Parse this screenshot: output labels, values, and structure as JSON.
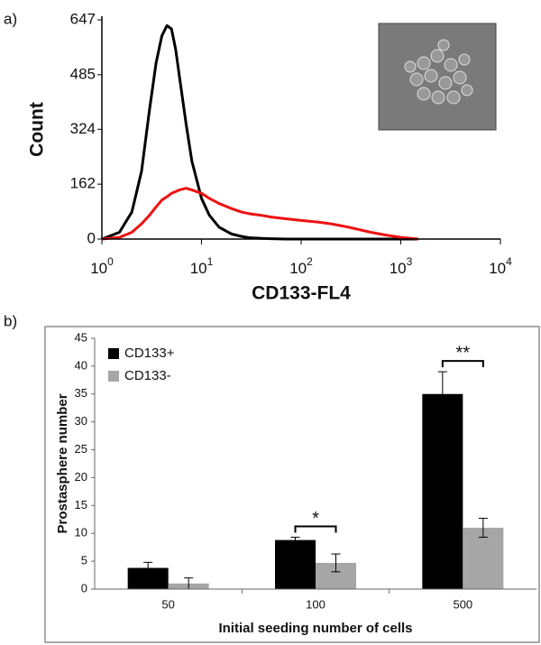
{
  "chart_data": [
    {
      "type": "line",
      "panel": "a)",
      "x_label": "CD133-FL4",
      "y_label": "Count",
      "log_x": true,
      "x": [
        1,
        1.5,
        2,
        2.5,
        3,
        3.5,
        4,
        4.5,
        5,
        5.5,
        6,
        7,
        8,
        10,
        12,
        15,
        20,
        25,
        30,
        40,
        50,
        70,
        100,
        150,
        200,
        300,
        500,
        700,
        1000,
        1500
      ],
      "series": [
        {
          "color": "#000000",
          "values": [
            0,
            20,
            80,
            200,
            380,
            520,
            600,
            630,
            620,
            560,
            480,
            340,
            230,
            120,
            70,
            35,
            15,
            8,
            4,
            2,
            1,
            0,
            0,
            0,
            0,
            0,
            0,
            0,
            0,
            0
          ]
        },
        {
          "color": "#ee1111",
          "values": [
            0,
            5,
            20,
            45,
            70,
            95,
            115,
            125,
            135,
            140,
            145,
            150,
            145,
            135,
            120,
            105,
            90,
            80,
            75,
            70,
            65,
            60,
            55,
            50,
            45,
            35,
            20,
            12,
            5,
            0
          ]
        }
      ],
      "xlim": [
        1,
        10000
      ],
      "xticks": [
        {
          "value": 1,
          "label": "10",
          "sup": "0"
        },
        {
          "value": 10,
          "label": "10",
          "sup": "1"
        },
        {
          "value": 100,
          "label": "10",
          "sup": "2"
        },
        {
          "value": 1000,
          "label": "10",
          "sup": "3"
        },
        {
          "value": 10000,
          "label": "10",
          "sup": "4"
        }
      ],
      "ylim": [
        0,
        647
      ],
      "yticks": [
        0,
        162,
        324,
        485,
        647
      ]
    },
    {
      "type": "bar",
      "panel": "b)",
      "x_label": "Initial seeding number of cells",
      "y_label": "Prostasphere number",
      "categories": [
        "50",
        "100",
        "500"
      ],
      "series": [
        {
          "name": "CD133+",
          "color": "#000000",
          "values": [
            3.8,
            8.8,
            35
          ],
          "errors": [
            1.0,
            0.5,
            4.0
          ]
        },
        {
          "name": "CD133-",
          "color": "#a6a6a6",
          "values": [
            1.0,
            4.7,
            11
          ],
          "errors": [
            1.0,
            1.6,
            1.7
          ]
        }
      ],
      "significance": [
        null,
        "*",
        "**"
      ],
      "legend": "top-left",
      "ylim": [
        0,
        45
      ],
      "yticks": [
        0,
        5,
        10,
        15,
        20,
        25,
        30,
        35,
        40,
        45
      ]
    }
  ]
}
